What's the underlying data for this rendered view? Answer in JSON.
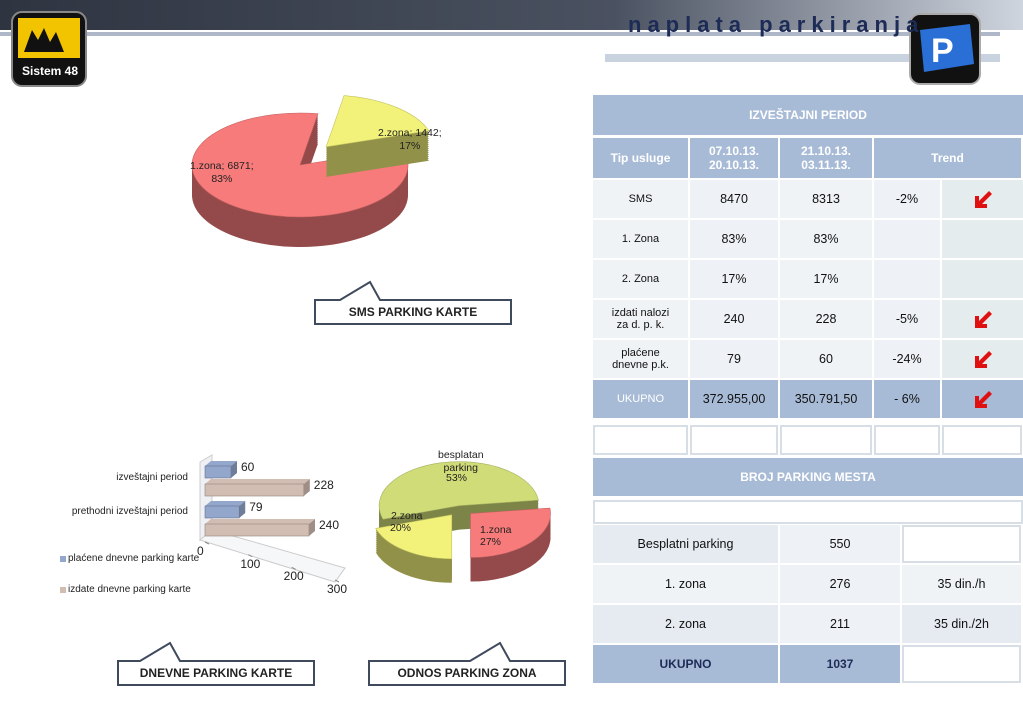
{
  "header": {
    "logo": "Sistem 48",
    "title": "naplata parkiranja"
  },
  "sms_chart": {
    "type": "pie",
    "categories": [
      "1.zona",
      "2.zona"
    ],
    "values": [
      6871,
      1442
    ],
    "value_labels": [
      "1.zona; 6871;\n83%",
      "2.zona; 1442;\n17%"
    ],
    "colors": [
      "#f77b7b",
      "#f2f27a"
    ]
  },
  "sms_callout": "SMS PARKING KARTE",
  "daily_chart": {
    "type": "bar",
    "categories": [
      "izveštajni period",
      "prethodni izveštajni period"
    ],
    "series": [
      {
        "name": "plaćene dnevne parking karte",
        "color": "#93a6cc",
        "values": [
          60,
          79
        ]
      },
      {
        "name": "izdate dnevne parking karte",
        "color": "#d2bdb3",
        "values": [
          228,
          240
        ]
      }
    ],
    "xlim": [
      0,
      300
    ],
    "xticks": [
      0,
      100,
      200,
      300
    ]
  },
  "daily_callout": "DNEVNE PARKING KARTE",
  "zone_chart": {
    "type": "pie",
    "categories": [
      "besplatan\nparking",
      "1.zona",
      "2.zona"
    ],
    "values": [
      53,
      27,
      20
    ],
    "value_labels": [
      "53%",
      "27%",
      "20%"
    ],
    "colors": [
      "#cfdc78",
      "#f77b7b",
      "#f2f27a"
    ]
  },
  "zone_callout": "ODNOS PARKING ZONA",
  "report_table": {
    "title": "IZVEŠTAJNI PERIOD",
    "columns": [
      "Tip usluge",
      "07.10.13.\n20.10.13.",
      "21.10.13.\n03.11.13.",
      "Trend"
    ],
    "rows": [
      {
        "cells": [
          "SMS",
          "8470",
          "8313",
          "-2%"
        ],
        "trend_down": true
      },
      {
        "cells": [
          "1. Zona",
          "83%",
          "83%",
          ""
        ],
        "trend_down": false
      },
      {
        "cells": [
          "2. Zona",
          "17%",
          "17%",
          ""
        ],
        "trend_down": false
      },
      {
        "cells": [
          "izdati nalozi\nza d. p. k.",
          "240",
          "228",
          "-5%"
        ],
        "trend_down": true
      },
      {
        "cells": [
          "plaćene\ndnevne p.k.",
          "79",
          "60",
          "-24%"
        ],
        "trend_down": true
      },
      {
        "cells": [
          "UKUPNO",
          "372.955,00",
          "350.791,50",
          "- 6%"
        ],
        "trend_down": true
      }
    ]
  },
  "parking_table": {
    "title": "BROJ PARKING MESTA",
    "rows": [
      [
        "Besplatni parking",
        "550"
      ],
      [
        "1. zona",
        "276",
        "35 din./h"
      ],
      [
        "2. zona",
        "211",
        "35 din./2h"
      ],
      [
        "UKUPNO",
        "1037"
      ]
    ]
  }
}
